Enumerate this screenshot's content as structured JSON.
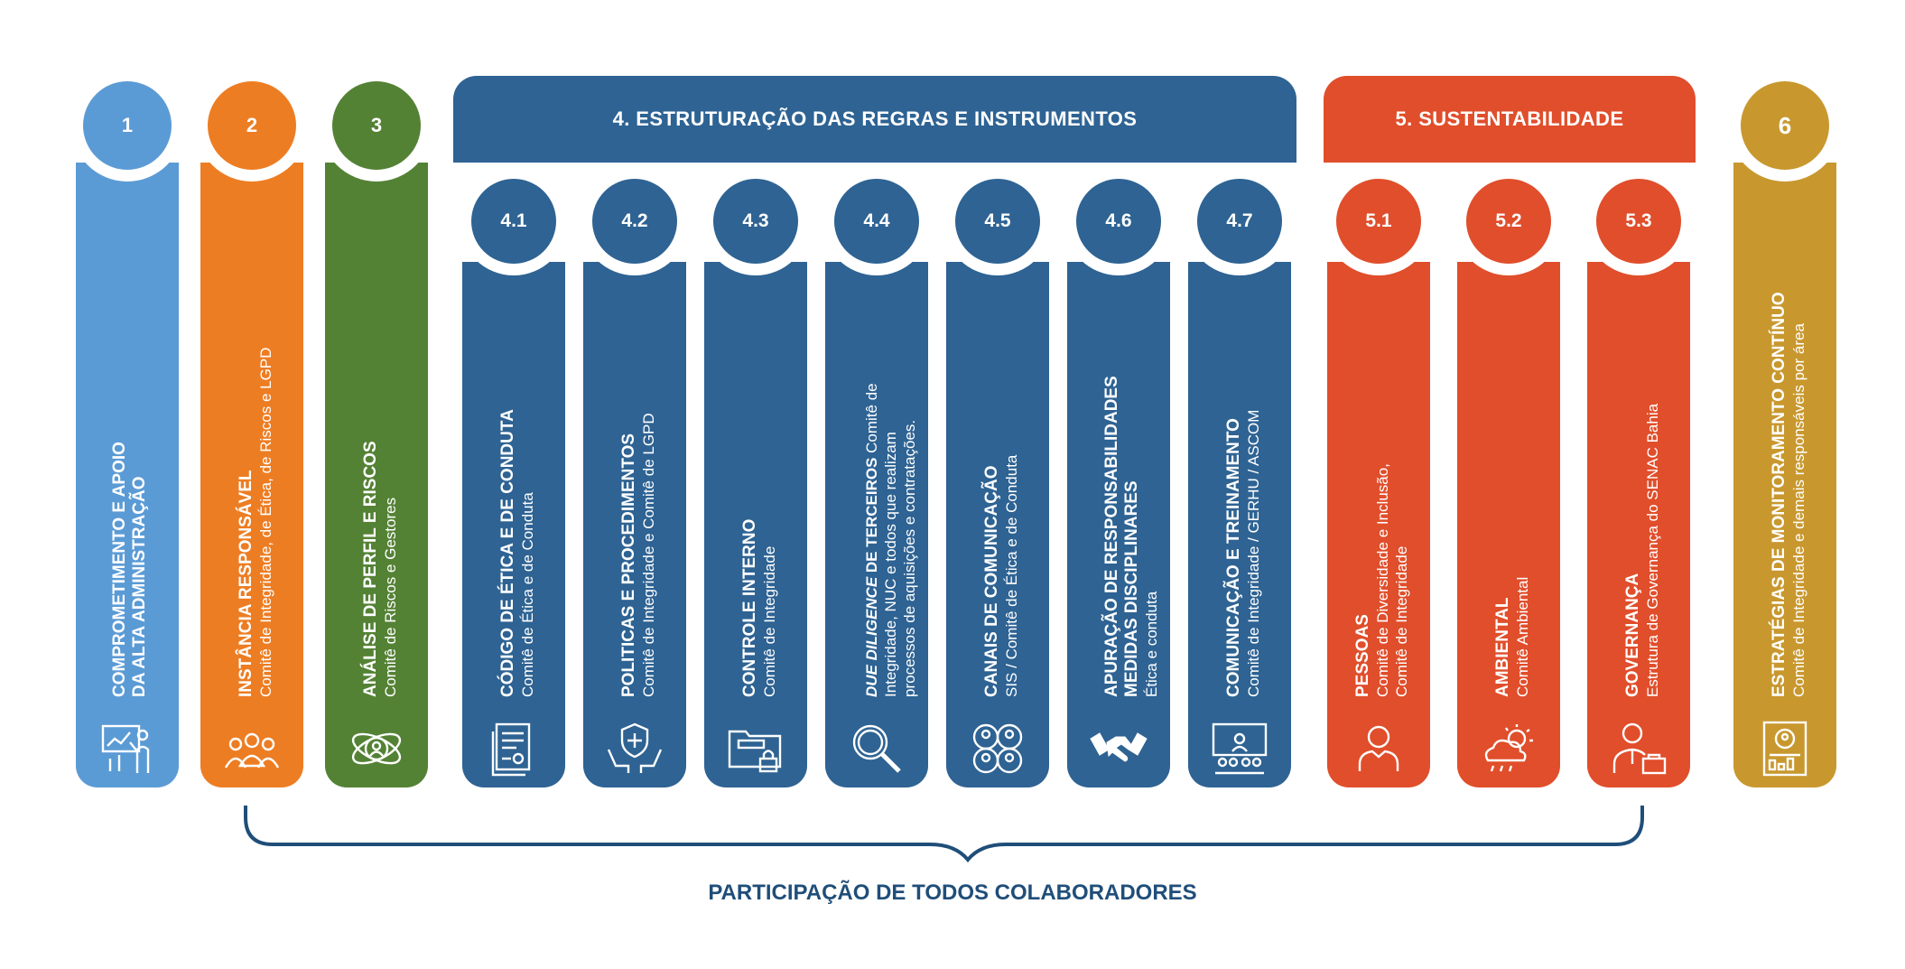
{
  "colors": {
    "c1": "#5b9bd5",
    "c2": "#ed7d23",
    "c3": "#548235",
    "c4": "#2e6393",
    "c5": "#e04e2b",
    "c6": "#c8982f",
    "footer": "#1f4e79"
  },
  "pillars": [
    {
      "num": "1",
      "title_lines": [
        "COMPROMETIMENTO E APOIO",
        "DA ALTA ADMINISTRAÇÃO"
      ],
      "sub": "",
      "icon": "presentation-icon"
    },
    {
      "num": "2",
      "title_lines": [
        "INSTÂNCIA RESPONSÁVEL"
      ],
      "sub": "Comitê de Integridade, de Ética, de Riscos e LGPD",
      "icon": "team-icon"
    },
    {
      "num": "3",
      "title_lines": [
        "ANÁLISE DE PERFIL E RISCOS"
      ],
      "sub": "Comitê de Riscos e Gestores",
      "icon": "risk-analysis-icon"
    },
    {
      "num": "6",
      "title_lines": [
        "ESTRATÉGIAS DE MONITORAMENTO CONTÍNUO"
      ],
      "sub": "Comitê de Integridade e demais responsáveis por área",
      "icon": "monitoring-report-icon"
    }
  ],
  "group4": {
    "title": "4. ESTRUTURAÇÃO DAS REGRAS E INSTRUMENTOS",
    "items": [
      {
        "num": "4.1",
        "title_lines": [
          "CÓDIGO DE ÉTICA E DE CONDUTA"
        ],
        "sub_lines": [
          "Comitê de Ética e de Conduta"
        ],
        "icon": "document-code-icon"
      },
      {
        "num": "4.2",
        "title_lines": [
          "POLITICAS E PROCEDIMENTOS"
        ],
        "sub_lines": [
          "Comitê de Integridade e Comitê de LGPD"
        ],
        "icon": "shield-hands-icon"
      },
      {
        "num": "4.3",
        "title_lines": [
          "CONTROLE INTERNO"
        ],
        "sub_lines": [
          "Comitê de Integridade"
        ],
        "icon": "locked-folder-icon"
      },
      {
        "num": "4.4",
        "title_emph": "DUE DILIGENCE",
        "title_rest": " DE TERCEIROS",
        "title_after": " Comitê de",
        "sub_lines": [
          "Integridade, NUC e todos que realizam",
          "processos de aquisições e contratações."
        ],
        "icon": "magnifier-icon"
      },
      {
        "num": "4.5",
        "title_lines": [
          "CANAIS DE COMUNICAÇÃO"
        ],
        "sub_lines": [
          "SIS / Comitê de Ética e de Conduta"
        ],
        "icon": "people-network-icon"
      },
      {
        "num": "4.6",
        "title_lines": [
          "APURAÇÃO DE RESPONSABILIDADES",
          "MEDIDAS DISCIPLINARES"
        ],
        "sub_lines": [
          "Ética e conduta"
        ],
        "icon": "handshake-icon"
      },
      {
        "num": "4.7",
        "title_lines": [
          "COMUNICAÇÃO E TREINAMENTO"
        ],
        "sub_lines": [
          "Comitê de Integridade / GERHU / ASCOM"
        ],
        "icon": "training-icon"
      }
    ]
  },
  "group5": {
    "title": "5. SUSTENTABILIDADE",
    "items": [
      {
        "num": "5.1",
        "title_lines": [
          "PESSOAS"
        ],
        "sub_lines": [
          "Comitê de Diversidade e Inclusão,",
          "Comitê de Integridade"
        ],
        "icon": "person-icon"
      },
      {
        "num": "5.2",
        "title_lines": [
          "AMBIENTAL"
        ],
        "sub_lines": [
          "Comitê Ambiental"
        ],
        "icon": "weather-icon"
      },
      {
        "num": "5.3",
        "title_lines": [
          "GOVERNANÇA"
        ],
        "sub_lines": [
          "Estrutura de Governança do SENAC Bahia"
        ],
        "icon": "executive-icon"
      }
    ]
  },
  "footer": "PARTICIPAÇÃO DE TODOS COLABORADORES"
}
